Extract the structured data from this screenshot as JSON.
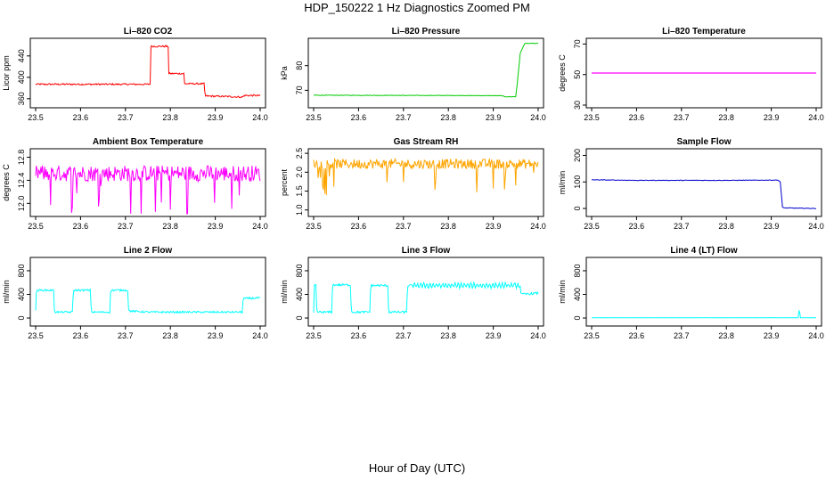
{
  "page": {
    "title": "HDP_150222  1 Hz Diagnostics Zoomed PM",
    "x_axis_title": "Hour of Day (UTC)"
  },
  "chart_data": [
    {
      "id": "co2",
      "type": "line",
      "title": "Li–820 CO2",
      "ylabel": "Licor ppm",
      "color": "#ff0000",
      "xlim": [
        23.5,
        24.0
      ],
      "ylim": [
        348,
        468
      ],
      "yticks": [
        360,
        400,
        440
      ],
      "x_ticks": [
        23.5,
        23.6,
        23.7,
        23.8,
        23.9,
        24.0
      ],
      "x": [
        23.5,
        23.755,
        23.756,
        23.76,
        23.795,
        23.796,
        23.83,
        23.831,
        23.876,
        23.877,
        23.93,
        23.96,
        23.965,
        24.0
      ],
      "values": [
        387,
        387,
        458,
        458,
        458,
        407,
        407,
        388,
        388,
        365,
        364,
        363,
        366,
        366
      ],
      "noise": 1.5
    },
    {
      "id": "pressure",
      "type": "line",
      "title": "Li–820 Pressure",
      "ylabel": "kPa",
      "color": "#00cc00",
      "xlim": [
        23.5,
        24.0
      ],
      "ylim": [
        64,
        90
      ],
      "yticks": [
        70,
        80
      ],
      "x_ticks": [
        23.5,
        23.6,
        23.7,
        23.8,
        23.9,
        24.0
      ],
      "x": [
        23.5,
        23.8,
        23.92,
        23.925,
        23.95,
        23.953,
        23.96,
        23.97,
        24.0
      ],
      "values": [
        68,
        67.9,
        67.8,
        67.4,
        67.4,
        72,
        85,
        89,
        89
      ],
      "noise": 0.1
    },
    {
      "id": "temperature",
      "type": "line",
      "title": "Li–820 Temperature",
      "ylabel": "degrees C",
      "color": "#ff00ff",
      "xlim": [
        23.5,
        24.0
      ],
      "ylim": [
        30,
        72
      ],
      "yticks": [
        30,
        50,
        70
      ],
      "x_ticks": [
        23.5,
        23.6,
        23.7,
        23.8,
        23.9,
        24.0
      ],
      "x": [
        23.5,
        24.0
      ],
      "values": [
        51,
        51
      ],
      "noise": 0
    },
    {
      "id": "ambient",
      "type": "line",
      "title": "Ambient Box Temperature",
      "ylabel": "degrees C",
      "color": "#ff00ff",
      "xlim": [
        23.5,
        24.0
      ],
      "ylim": [
        11.82,
        12.9
      ],
      "yticks": [
        12.0,
        12.4,
        12.8
      ],
      "x_ticks": [
        23.5,
        23.6,
        23.7,
        23.8,
        23.9,
        24.0
      ],
      "x": [
        23.5,
        24.0
      ],
      "values": [
        12.52,
        12.52
      ],
      "noise": 0.14,
      "spikes": true
    },
    {
      "id": "rh",
      "type": "line",
      "title": "Gas Stream RH",
      "ylabel": "percent",
      "color": "#ffa500",
      "xlim": [
        23.5,
        24.0
      ],
      "ylim": [
        0.9,
        2.55
      ],
      "yticks": [
        1.0,
        1.5,
        2.0,
        2.5
      ],
      "x_ticks": [
        23.5,
        23.6,
        23.7,
        23.8,
        23.9,
        24.0
      ],
      "x": [
        23.5,
        24.0
      ],
      "values": [
        2.22,
        2.22
      ],
      "noise": 0.13,
      "spikes": true
    },
    {
      "id": "sample",
      "type": "line",
      "title": "Sample Flow",
      "ylabel": "ml/min",
      "color": "#0000cc",
      "xlim": [
        23.5,
        24.0
      ],
      "ylim": [
        -20,
        215
      ],
      "yticks": [
        0,
        100,
        200
      ],
      "x_ticks": [
        23.5,
        23.6,
        23.7,
        23.8,
        23.9,
        24.0
      ],
      "x": [
        23.5,
        23.6,
        23.8,
        23.915,
        23.92,
        23.925,
        23.93,
        24.0
      ],
      "values": [
        108,
        106,
        106,
        107,
        100,
        5,
        2,
        0
      ],
      "noise": 1
    },
    {
      "id": "line2",
      "type": "line",
      "title": "Line 2 Flow",
      "ylabel": "ml/min",
      "color": "#00ffff",
      "xlim": [
        23.5,
        24.0
      ],
      "ylim": [
        -90,
        980
      ],
      "yticks": [
        0,
        400,
        800
      ],
      "x_ticks": [
        23.5,
        23.6,
        23.7,
        23.8,
        23.9,
        24.0
      ],
      "x": [
        23.5,
        23.502,
        23.54,
        23.542,
        23.582,
        23.584,
        23.622,
        23.624,
        23.665,
        23.667,
        23.705,
        23.707,
        23.75,
        23.96,
        23.962,
        24.0
      ],
      "values": [
        130,
        470,
        470,
        100,
        100,
        470,
        470,
        100,
        100,
        470,
        470,
        120,
        100,
        100,
        330,
        340
      ],
      "noise": 15
    },
    {
      "id": "line3",
      "type": "line",
      "title": "Line 3 Flow",
      "ylabel": "ml/min",
      "color": "#00ffff",
      "xlim": [
        23.5,
        24.0
      ],
      "ylim": [
        -90,
        980
      ],
      "yticks": [
        0,
        400,
        800
      ],
      "x_ticks": [
        23.5,
        23.6,
        23.7,
        23.8,
        23.9,
        24.0
      ],
      "x": [
        23.5,
        23.501,
        23.505,
        23.507,
        23.54,
        23.542,
        23.582,
        23.584,
        23.625,
        23.627,
        23.665,
        23.667,
        23.707,
        23.709,
        23.96,
        23.962,
        24.0
      ],
      "values": [
        80,
        550,
        550,
        100,
        100,
        560,
        560,
        100,
        100,
        550,
        550,
        100,
        100,
        550,
        550,
        400,
        420
      ],
      "noise": 18,
      "wave": true
    },
    {
      "id": "line4",
      "type": "line",
      "title": "Line 4 (LT) Flow",
      "ylabel": "ml/min",
      "color": "#00ffff",
      "xlim": [
        23.5,
        24.0
      ],
      "ylim": [
        -90,
        980
      ],
      "yticks": [
        0,
        400,
        800
      ],
      "x_ticks": [
        23.5,
        23.6,
        23.7,
        23.8,
        23.9,
        24.0
      ],
      "x": [
        23.5,
        23.96,
        23.961,
        23.963,
        23.965,
        24.0
      ],
      "values": [
        5,
        5,
        120,
        120,
        5,
        5
      ],
      "noise": 2
    }
  ]
}
